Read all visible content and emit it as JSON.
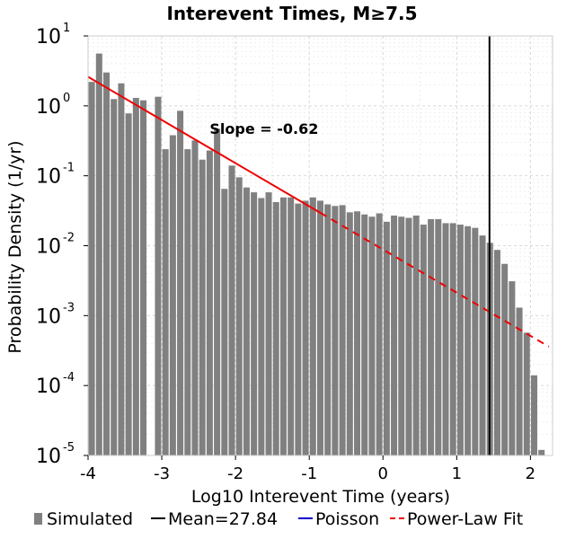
{
  "chart_data": {
    "type": "bar",
    "title": "Interevent Times, M≥7.5",
    "xlabel": "Log10 Interevent Time (years)",
    "ylabel": "Probability Density (1/yr)",
    "xlim": [
      -4,
      2.3
    ],
    "ylim_log10": [
      -5,
      1
    ],
    "y_scale": "log",
    "grid": true,
    "x_ticks": [
      {
        "value": -4,
        "label": "-4"
      },
      {
        "value": -3,
        "label": "-3"
      },
      {
        "value": -2,
        "label": "-2"
      },
      {
        "value": -1,
        "label": "-1"
      },
      {
        "value": 0,
        "label": "0"
      },
      {
        "value": 1,
        "label": "1"
      },
      {
        "value": 2,
        "label": "2"
      }
    ],
    "y_ticks": [
      {
        "exp": -5,
        "base": "10",
        "exp_label": "-5"
      },
      {
        "exp": -4,
        "base": "10",
        "exp_label": "-4"
      },
      {
        "exp": -3,
        "base": "10",
        "exp_label": "-3"
      },
      {
        "exp": -2,
        "base": "10",
        "exp_label": "-2"
      },
      {
        "exp": -1,
        "base": "10",
        "exp_label": "-1"
      },
      {
        "exp": 0,
        "base": "10",
        "exp_label": "0"
      },
      {
        "exp": 1,
        "base": "10",
        "exp_label": "1"
      }
    ],
    "bar_color": "#808080",
    "histogram": {
      "bin_start": -4.0,
      "bin_width": 0.1,
      "density": [
        2.2,
        5.6,
        3.0,
        1.25,
        2.1,
        0.78,
        1.3,
        1.2,
        0.0,
        1.35,
        0.24,
        0.38,
        0.85,
        0.24,
        0.32,
        0.17,
        0.23,
        0.47,
        0.065,
        0.14,
        0.095,
        0.068,
        0.058,
        0.048,
        0.058,
        0.042,
        0.049,
        0.049,
        0.04,
        0.044,
        0.049,
        0.044,
        0.039,
        0.037,
        0.038,
        0.03,
        0.031,
        0.028,
        0.026,
        0.029,
        0.022,
        0.027,
        0.026,
        0.025,
        0.027,
        0.02,
        0.024,
        0.024,
        0.021,
        0.021,
        0.02,
        0.019,
        0.018,
        0.014,
        0.011,
        0.0087,
        0.0055,
        0.0031,
        0.0013,
        0.00057,
        0.00014,
        1.2e-05
      ]
    },
    "series": [
      {
        "name": "Simulated",
        "type": "histogram",
        "color": "#808080"
      },
      {
        "name": "Mean=27.84",
        "type": "vline",
        "color": "#000000",
        "x": 1.4446
      },
      {
        "name": "Poisson",
        "type": "line",
        "color": "#0000cc",
        "mean_years": 27.84
      },
      {
        "name": "Power-Law Fit",
        "type": "line",
        "color": "#ee0000",
        "slope": -0.62,
        "points": [
          {
            "x": -4.0,
            "y": 2.6
          },
          {
            "x": 2.25,
            "y": 0.00036
          }
        ],
        "solid_until_x": -0.85
      }
    ],
    "annotations": [
      {
        "text": "Slope = -0.62",
        "x": -2.35,
        "y_log10": -0.4
      }
    ],
    "legend": {
      "placement": "bottom",
      "entries": [
        "Simulated",
        "Mean=27.84",
        "Poisson",
        "Power-Law Fit"
      ]
    }
  }
}
